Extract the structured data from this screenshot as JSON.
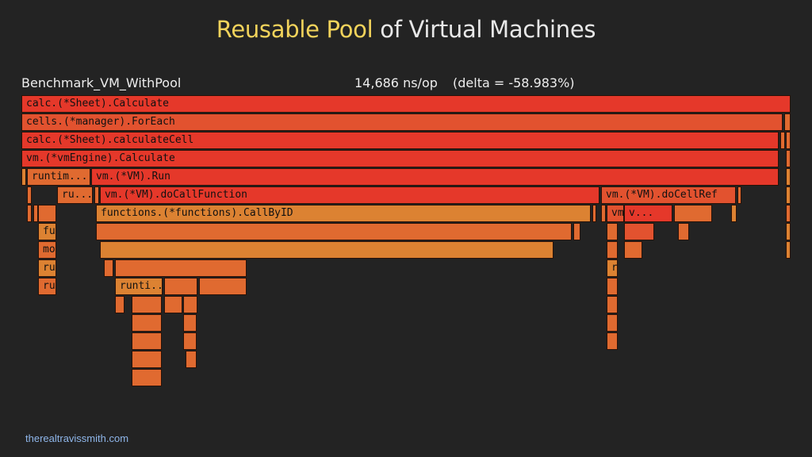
{
  "title": {
    "highlight": "Reusable Pool",
    "rest": " of Virtual Machines"
  },
  "benchmark": {
    "name": "Benchmark_VM_WithPool",
    "ns_per_op": "14,686 ns/op",
    "delta": "(delta = -58.983%)"
  },
  "flamegraph": {
    "colors": {
      "red": "#e5382a",
      "redorange": "#e2522f",
      "orange": "#e06a30",
      "amber": "#dc8232"
    },
    "frames": [
      {
        "label": "calc.(*Sheet).Calculate",
        "color": "red"
      },
      {
        "label": "cells.(*manager).ForEach",
        "color": "redorange"
      },
      {
        "label": "",
        "color": "orange"
      },
      {
        "label": "calc.(*Sheet).calculateCell",
        "color": "red"
      },
      {
        "label": "",
        "color": "orange"
      },
      {
        "label": "",
        "color": "orange"
      },
      {
        "label": "vm.(*vmEngine).Calculate",
        "color": "red"
      },
      {
        "label": "",
        "color": "orange"
      },
      {
        "label": "",
        "color": "amber"
      },
      {
        "label": "runtim...",
        "color": "orange"
      },
      {
        "label": "vm.(*VM).Run",
        "color": "red"
      },
      {
        "label": "",
        "color": "amber"
      },
      {
        "label": "",
        "color": "orange"
      },
      {
        "label": "ru...",
        "color": "orange"
      },
      {
        "label": "",
        "color": "orange"
      },
      {
        "label": "vm.(*VM).doCallFunction",
        "color": "red"
      },
      {
        "label": "vm.(*VM).doCellRef",
        "color": "redorange"
      },
      {
        "label": "",
        "color": "orange"
      },
      {
        "label": "",
        "color": "amber"
      },
      {
        "label": "",
        "color": "orange"
      },
      {
        "label": "",
        "color": "orange"
      },
      {
        "label": "",
        "color": "orange"
      },
      {
        "label": "functions.(*functions).CallByID",
        "color": "amber"
      },
      {
        "label": "",
        "color": "orange"
      },
      {
        "label": "",
        "color": "orange"
      },
      {
        "label": "vm.(...",
        "color": "redorange"
      },
      {
        "label": "v...",
        "color": "red"
      },
      {
        "label": "",
        "color": "orange"
      },
      {
        "label": "",
        "color": "amber"
      },
      {
        "label": "",
        "color": "orange"
      },
      {
        "label": "functions.(*functions).Sum",
        "color": "amber"
      },
      {
        "label": "",
        "color": "orange"
      },
      {
        "label": "",
        "color": "orange"
      },
      {
        "label": "",
        "color": "orange"
      },
      {
        "label": "",
        "color": "redorange"
      },
      {
        "label": "",
        "color": "orange"
      },
      {
        "label": "",
        "color": "amber"
      },
      {
        "label": "model.(*ResultStack).Push",
        "color": "orange"
      },
      {
        "label": "",
        "color": "amber"
      },
      {
        "label": "",
        "color": "orange"
      },
      {
        "label": "",
        "color": "orange"
      },
      {
        "label": "",
        "color": "amber"
      },
      {
        "label": "runtime.growslice",
        "color": "amber"
      },
      {
        "label": "",
        "color": "orange"
      },
      {
        "label": "",
        "color": "orange"
      },
      {
        "label": "runti...",
        "color": "amber"
      },
      {
        "label": "ru...",
        "color": "orange"
      },
      {
        "label": "runti...",
        "color": "amber"
      },
      {
        "label": "",
        "color": "orange"
      },
      {
        "label": "",
        "color": "orange"
      },
      {
        "label": "",
        "color": "orange"
      },
      {
        "label": "",
        "color": "orange"
      },
      {
        "label": "",
        "color": "orange"
      },
      {
        "label": "",
        "color": "orange"
      },
      {
        "label": "",
        "color": "orange"
      },
      {
        "label": "",
        "color": "orange"
      },
      {
        "label": "",
        "color": "orange"
      },
      {
        "label": "",
        "color": "orange"
      },
      {
        "label": "",
        "color": "orange"
      },
      {
        "label": "",
        "color": "orange"
      },
      {
        "label": "",
        "color": "orange"
      },
      {
        "label": "",
        "color": "orange"
      },
      {
        "label": "",
        "color": "orange"
      },
      {
        "label": "",
        "color": "orange"
      },
      {
        "label": "",
        "color": "orange"
      }
    ]
  },
  "credit": "therealtravissmith.com"
}
